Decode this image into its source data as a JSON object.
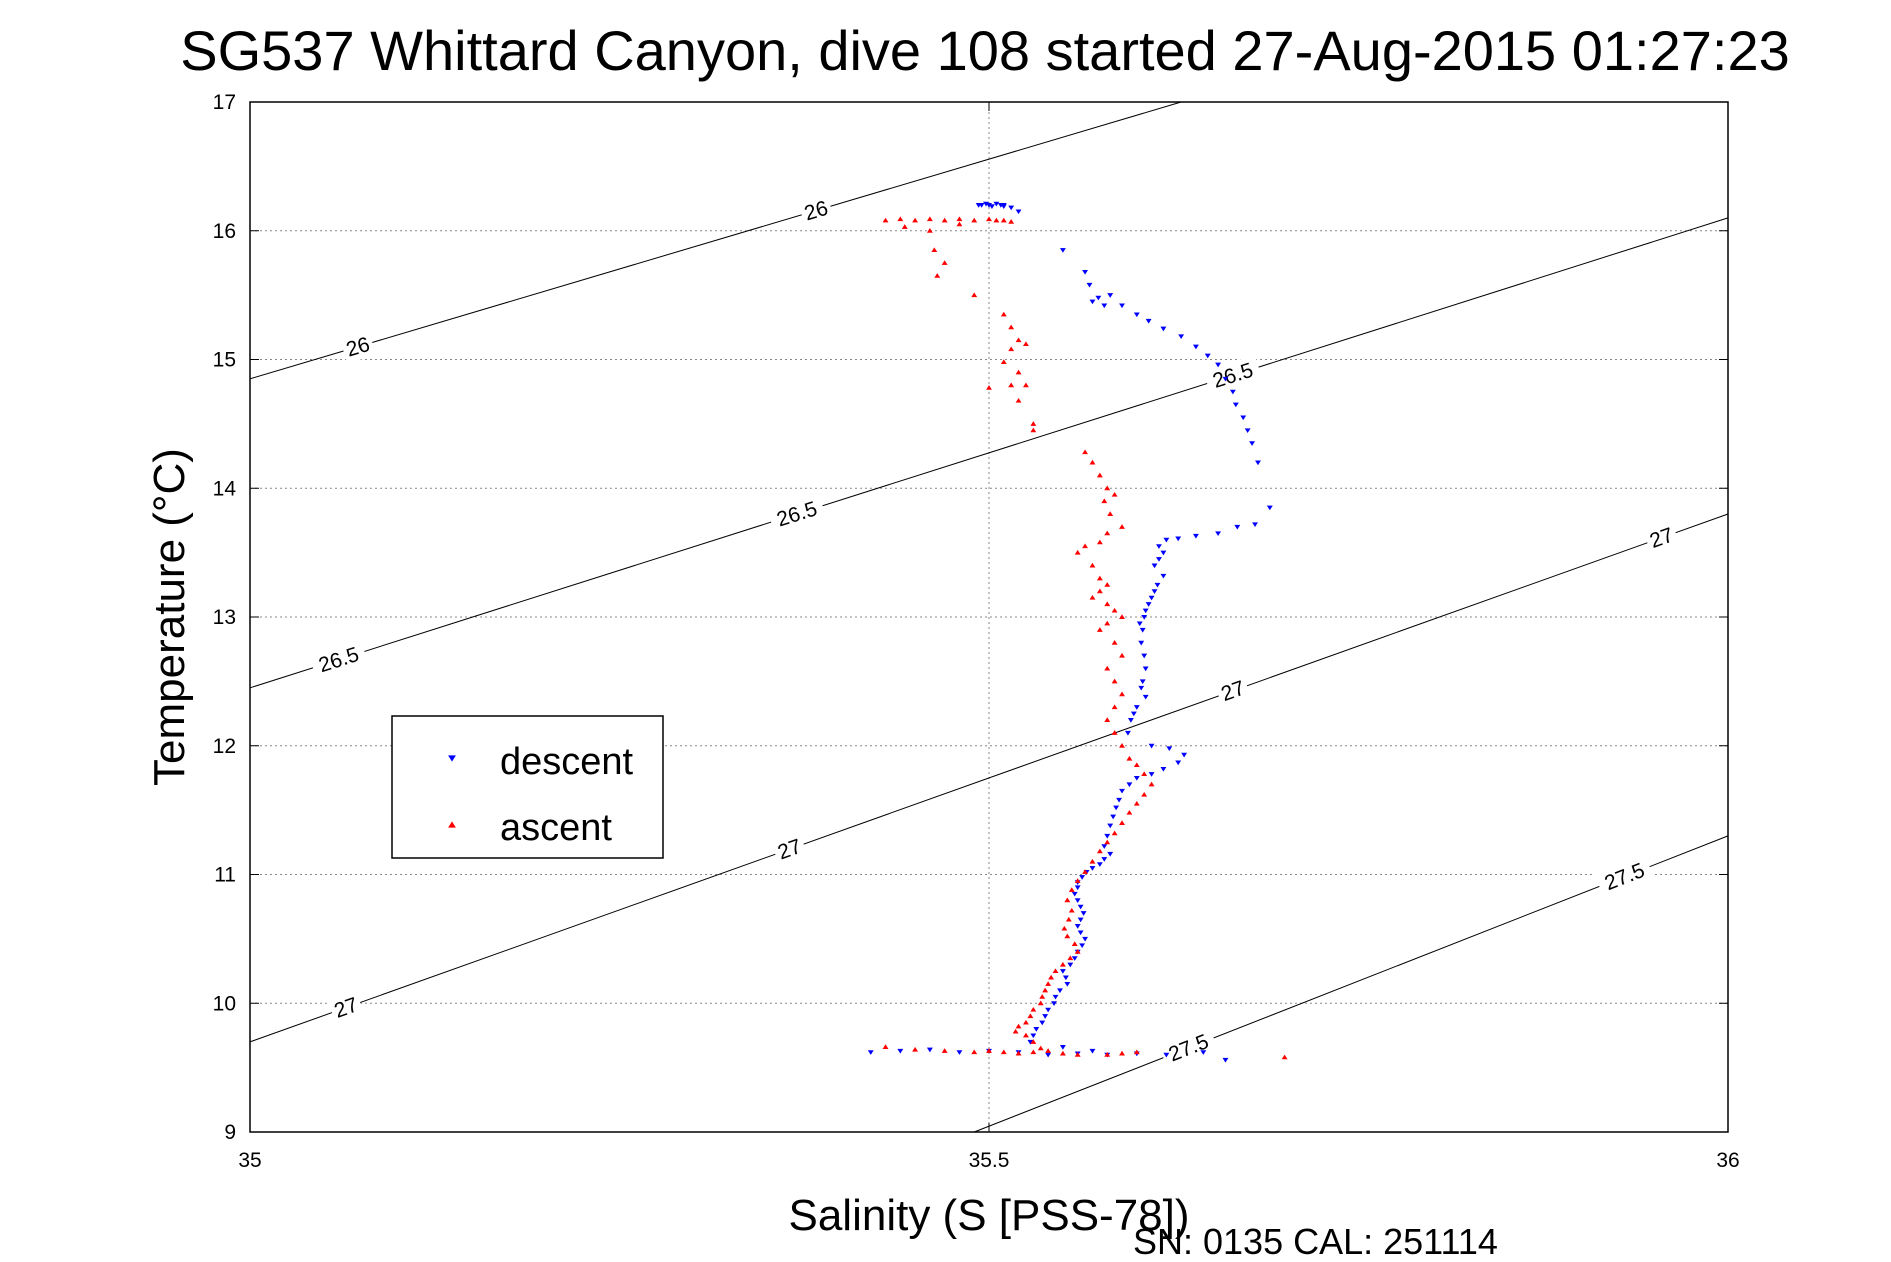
{
  "chart_data": {
    "type": "scatter",
    "title": "SG537 Whittard Canyon, dive 108 started 27-Aug-2015 01:27:23",
    "xlabel": "Salinity (S [PSS-78])",
    "ylabel": "Temperature (°C)",
    "xlim": [
      35,
      36
    ],
    "ylim": [
      9,
      17
    ],
    "x_ticks": [
      "35",
      "35.5",
      "36"
    ],
    "y_ticks": [
      "9",
      "10",
      "11",
      "12",
      "13",
      "14",
      "15",
      "16",
      "17"
    ],
    "grid": true,
    "legend_position": "left",
    "footer": "SN: 0135  CAL: 251114",
    "contours": [
      {
        "level": "26",
        "line": [
          [
            35,
            14.85
          ],
          [
            35.63,
            17
          ]
        ],
        "labels": [
          [
            35.073,
            15.1
          ],
          [
            35.383,
            16.15
          ]
        ]
      },
      {
        "level": "26.5",
        "line": [
          [
            35,
            12.45
          ],
          [
            36,
            16.1
          ]
        ],
        "labels": [
          [
            35.06,
            12.65
          ],
          [
            35.37,
            13.8
          ],
          [
            35.665,
            14.9
          ]
        ]
      },
      {
        "level": "27",
        "line": [
          [
            35,
            9.7
          ],
          [
            36,
            13.8
          ]
        ],
        "labels": [
          [
            35.065,
            9.95
          ],
          [
            35.365,
            11.3
          ],
          [
            35.665,
            12.55
          ],
          [
            35.955,
            13.65
          ]
        ]
      },
      {
        "level": "27.5",
        "line": [
          [
            35.49,
            9
          ],
          [
            36,
            11.3
          ]
        ],
        "labels": [
          [
            35.635,
            9.65
          ],
          [
            35.93,
            11
          ]
        ]
      }
    ],
    "series": [
      {
        "name": "descent",
        "color": "#0000ff",
        "marker": "triangle-down",
        "points": [
          [
            35.495,
            16.2
          ],
          [
            35.5,
            16.2
          ],
          [
            35.505,
            16.21
          ],
          [
            35.51,
            16.19
          ],
          [
            35.515,
            16.18
          ],
          [
            35.51,
            16.2
          ],
          [
            35.502,
            16.19
          ],
          [
            35.498,
            16.21
          ],
          [
            35.493,
            16.2
          ],
          [
            35.508,
            16.2
          ],
          [
            35.52,
            16.15
          ],
          [
            35.55,
            15.85
          ],
          [
            35.565,
            15.68
          ],
          [
            35.568,
            15.58
          ],
          [
            35.57,
            15.45
          ],
          [
            35.574,
            15.48
          ],
          [
            35.578,
            15.42
          ],
          [
            35.582,
            15.5
          ],
          [
            35.59,
            15.42
          ],
          [
            35.6,
            15.35
          ],
          [
            35.608,
            15.3
          ],
          [
            35.618,
            15.24
          ],
          [
            35.63,
            15.18
          ],
          [
            35.64,
            15.1
          ],
          [
            35.648,
            15.03
          ],
          [
            35.655,
            14.96
          ],
          [
            35.66,
            14.85
          ],
          [
            35.665,
            14.75
          ],
          [
            35.667,
            14.65
          ],
          [
            35.672,
            14.55
          ],
          [
            35.675,
            14.45
          ],
          [
            35.678,
            14.35
          ],
          [
            35.682,
            14.2
          ],
          [
            35.69,
            13.85
          ],
          [
            35.68,
            13.72
          ],
          [
            35.668,
            13.7
          ],
          [
            35.655,
            13.65
          ],
          [
            35.64,
            13.63
          ],
          [
            35.628,
            13.61
          ],
          [
            35.62,
            13.6
          ],
          [
            35.615,
            13.55
          ],
          [
            35.618,
            13.5
          ],
          [
            35.615,
            13.45
          ],
          [
            35.612,
            13.4
          ],
          [
            35.618,
            13.32
          ],
          [
            35.614,
            13.25
          ],
          [
            35.612,
            13.2
          ],
          [
            35.61,
            13.15
          ],
          [
            35.608,
            13.1
          ],
          [
            35.606,
            13.05
          ],
          [
            35.605,
            13.0
          ],
          [
            35.602,
            12.95
          ],
          [
            35.604,
            12.9
          ],
          [
            35.603,
            12.8
          ],
          [
            35.605,
            12.7
          ],
          [
            35.606,
            12.6
          ],
          [
            35.604,
            12.5
          ],
          [
            35.603,
            12.45
          ],
          [
            35.606,
            12.38
          ],
          [
            35.6,
            12.3
          ],
          [
            35.598,
            12.25
          ],
          [
            35.596,
            12.2
          ],
          [
            35.594,
            12.1
          ],
          [
            35.61,
            12.0
          ],
          [
            35.622,
            11.98
          ],
          [
            35.632,
            11.93
          ],
          [
            35.628,
            11.87
          ],
          [
            35.618,
            11.82
          ],
          [
            35.61,
            11.78
          ],
          [
            35.6,
            11.75
          ],
          [
            35.595,
            11.7
          ],
          [
            35.59,
            11.65
          ],
          [
            35.588,
            11.58
          ],
          [
            35.586,
            11.52
          ],
          [
            35.584,
            11.45
          ],
          [
            35.582,
            11.38
          ],
          [
            35.58,
            11.3
          ],
          [
            35.578,
            11.22
          ],
          [
            35.582,
            11.16
          ],
          [
            35.578,
            11.12
          ],
          [
            35.575,
            11.08
          ],
          [
            35.57,
            11.05
          ],
          [
            35.566,
            11.02
          ],
          [
            35.563,
            10.98
          ],
          [
            35.56,
            10.94
          ],
          [
            35.56,
            10.9
          ],
          [
            35.558,
            10.85
          ],
          [
            35.56,
            10.8
          ],
          [
            35.562,
            10.75
          ],
          [
            35.564,
            10.7
          ],
          [
            35.562,
            10.65
          ],
          [
            35.56,
            10.6
          ],
          [
            35.562,
            10.55
          ],
          [
            35.565,
            10.5
          ],
          [
            35.563,
            10.45
          ],
          [
            35.56,
            10.4
          ],
          [
            35.558,
            10.35
          ],
          [
            35.555,
            10.3
          ],
          [
            35.55,
            10.25
          ],
          [
            35.552,
            10.2
          ],
          [
            35.553,
            10.15
          ],
          [
            35.548,
            10.1
          ],
          [
            35.545,
            10.05
          ],
          [
            35.544,
            10.0
          ],
          [
            35.54,
            9.95
          ],
          [
            35.538,
            9.9
          ],
          [
            35.536,
            9.85
          ],
          [
            35.532,
            9.8
          ],
          [
            35.53,
            9.75
          ],
          [
            35.528,
            9.7
          ],
          [
            35.42,
            9.62
          ],
          [
            35.44,
            9.63
          ],
          [
            35.46,
            9.64
          ],
          [
            35.48,
            9.62
          ],
          [
            35.5,
            9.63
          ],
          [
            35.52,
            9.62
          ],
          [
            35.54,
            9.6
          ],
          [
            35.56,
            9.61
          ],
          [
            35.58,
            9.6
          ],
          [
            35.6,
            9.61
          ],
          [
            35.62,
            9.6
          ],
          [
            35.645,
            9.62
          ],
          [
            35.66,
            9.56
          ],
          [
            35.55,
            9.66
          ],
          [
            35.57,
            9.63
          ]
        ]
      },
      {
        "name": "ascent",
        "color": "#ff0000",
        "marker": "triangle-up",
        "points": [
          [
            35.43,
            16.08
          ],
          [
            35.44,
            16.09
          ],
          [
            35.45,
            16.08
          ],
          [
            35.46,
            16.09
          ],
          [
            35.47,
            16.08
          ],
          [
            35.48,
            16.09
          ],
          [
            35.49,
            16.08
          ],
          [
            35.5,
            16.09
          ],
          [
            35.505,
            16.08
          ],
          [
            35.51,
            16.08
          ],
          [
            35.515,
            16.07
          ],
          [
            35.48,
            16.05
          ],
          [
            35.46,
            16.0
          ],
          [
            35.443,
            16.03
          ],
          [
            35.463,
            15.85
          ],
          [
            35.47,
            15.75
          ],
          [
            35.465,
            15.65
          ],
          [
            35.49,
            15.5
          ],
          [
            35.51,
            15.35
          ],
          [
            35.515,
            15.25
          ],
          [
            35.52,
            15.15
          ],
          [
            35.525,
            15.12
          ],
          [
            35.515,
            15.08
          ],
          [
            35.51,
            14.98
          ],
          [
            35.52,
            14.9
          ],
          [
            35.5,
            14.78
          ],
          [
            35.515,
            14.8
          ],
          [
            35.525,
            14.8
          ],
          [
            35.52,
            14.68
          ],
          [
            35.53,
            14.5
          ],
          [
            35.53,
            14.45
          ],
          [
            35.565,
            14.28
          ],
          [
            35.57,
            14.2
          ],
          [
            35.575,
            14.1
          ],
          [
            35.58,
            14.0
          ],
          [
            35.585,
            13.95
          ],
          [
            35.578,
            13.9
          ],
          [
            35.582,
            13.8
          ],
          [
            35.59,
            13.7
          ],
          [
            35.58,
            13.65
          ],
          [
            35.575,
            13.58
          ],
          [
            35.565,
            13.55
          ],
          [
            35.56,
            13.5
          ],
          [
            35.57,
            13.4
          ],
          [
            35.575,
            13.3
          ],
          [
            35.58,
            13.25
          ],
          [
            35.575,
            13.2
          ],
          [
            35.57,
            13.15
          ],
          [
            35.58,
            13.1
          ],
          [
            35.585,
            13.05
          ],
          [
            35.59,
            13.0
          ],
          [
            35.58,
            12.95
          ],
          [
            35.575,
            12.9
          ],
          [
            35.585,
            12.8
          ],
          [
            35.59,
            12.7
          ],
          [
            35.58,
            12.6
          ],
          [
            35.585,
            12.5
          ],
          [
            35.59,
            12.4
          ],
          [
            35.585,
            12.3
          ],
          [
            35.58,
            12.2
          ],
          [
            35.585,
            12.1
          ],
          [
            35.59,
            12.0
          ],
          [
            35.595,
            11.9
          ],
          [
            35.6,
            11.85
          ],
          [
            35.605,
            11.78
          ],
          [
            35.61,
            11.7
          ],
          [
            35.605,
            11.62
          ],
          [
            35.6,
            11.55
          ],
          [
            35.595,
            11.48
          ],
          [
            35.59,
            11.4
          ],
          [
            35.585,
            11.32
          ],
          [
            35.58,
            11.25
          ],
          [
            35.575,
            11.18
          ],
          [
            35.57,
            11.1
          ],
          [
            35.565,
            11.02
          ],
          [
            35.56,
            10.95
          ],
          [
            35.556,
            10.88
          ],
          [
            35.553,
            10.8
          ],
          [
            35.556,
            10.72
          ],
          [
            35.554,
            10.65
          ],
          [
            35.551,
            10.58
          ],
          [
            35.553,
            10.52
          ],
          [
            35.558,
            10.46
          ],
          [
            35.56,
            10.4
          ],
          [
            35.555,
            10.35
          ],
          [
            35.55,
            10.3
          ],
          [
            35.545,
            10.25
          ],
          [
            35.542,
            10.2
          ],
          [
            35.54,
            10.15
          ],
          [
            35.538,
            10.1
          ],
          [
            35.536,
            10.05
          ],
          [
            35.535,
            10.0
          ],
          [
            35.53,
            9.95
          ],
          [
            35.528,
            9.9
          ],
          [
            35.525,
            9.85
          ],
          [
            35.52,
            9.82
          ],
          [
            35.518,
            9.78
          ],
          [
            35.525,
            9.75
          ],
          [
            35.53,
            9.7
          ],
          [
            35.535,
            9.65
          ],
          [
            35.43,
            9.66
          ],
          [
            35.45,
            9.64
          ],
          [
            35.47,
            9.63
          ],
          [
            35.49,
            9.62
          ],
          [
            35.5,
            9.63
          ],
          [
            35.51,
            9.62
          ],
          [
            35.52,
            9.61
          ],
          [
            35.53,
            9.62
          ],
          [
            35.54,
            9.63
          ],
          [
            35.55,
            9.61
          ],
          [
            35.56,
            9.6
          ],
          [
            35.58,
            9.6
          ],
          [
            35.59,
            9.61
          ],
          [
            35.6,
            9.62
          ],
          [
            35.7,
            9.58
          ]
        ]
      }
    ]
  }
}
